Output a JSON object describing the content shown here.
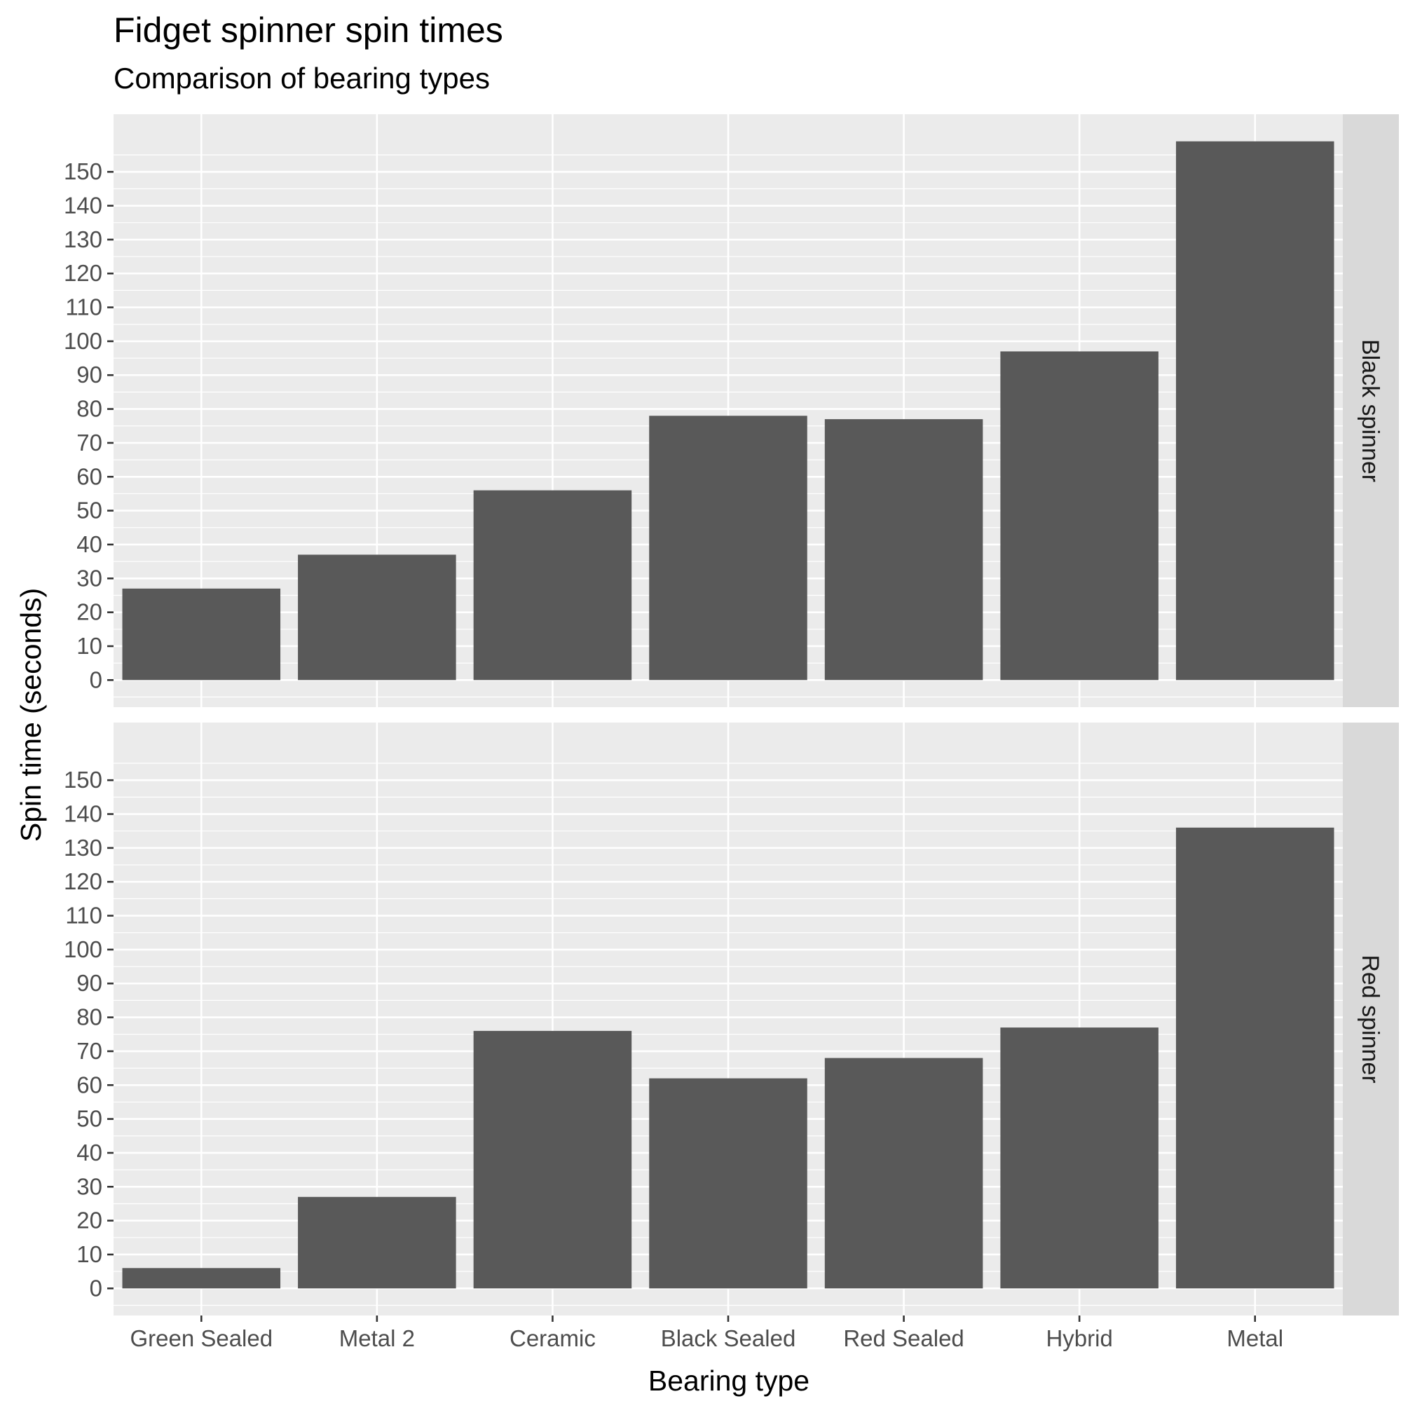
{
  "chart_data": {
    "type": "bar",
    "title": "Fidget spinner spin times",
    "subtitle": "Comparison of bearing types",
    "xlabel": "Bearing type",
    "ylabel": "Spin time (seconds)",
    "categories": [
      "Green Sealed",
      "Metal 2",
      "Ceramic",
      "Black Sealed",
      "Red Sealed",
      "Hybrid",
      "Metal"
    ],
    "ylim": [
      -8,
      167
    ],
    "yticks": [
      "0",
      "10",
      "20",
      "30",
      "40",
      "50",
      "60",
      "70",
      "80",
      "90",
      "100",
      "110",
      "120",
      "130",
      "140",
      "150"
    ],
    "facets": [
      {
        "name": "Black spinner",
        "values": [
          27,
          37,
          56,
          78,
          77,
          97,
          159
        ]
      },
      {
        "name": "Red spinner",
        "values": [
          6,
          27,
          76,
          62,
          68,
          77,
          136
        ]
      }
    ],
    "bar_color": "#595959",
    "panel_color": "#ebebeb",
    "strip_color": "#d9d9d9",
    "grid": true,
    "legend": "none"
  }
}
